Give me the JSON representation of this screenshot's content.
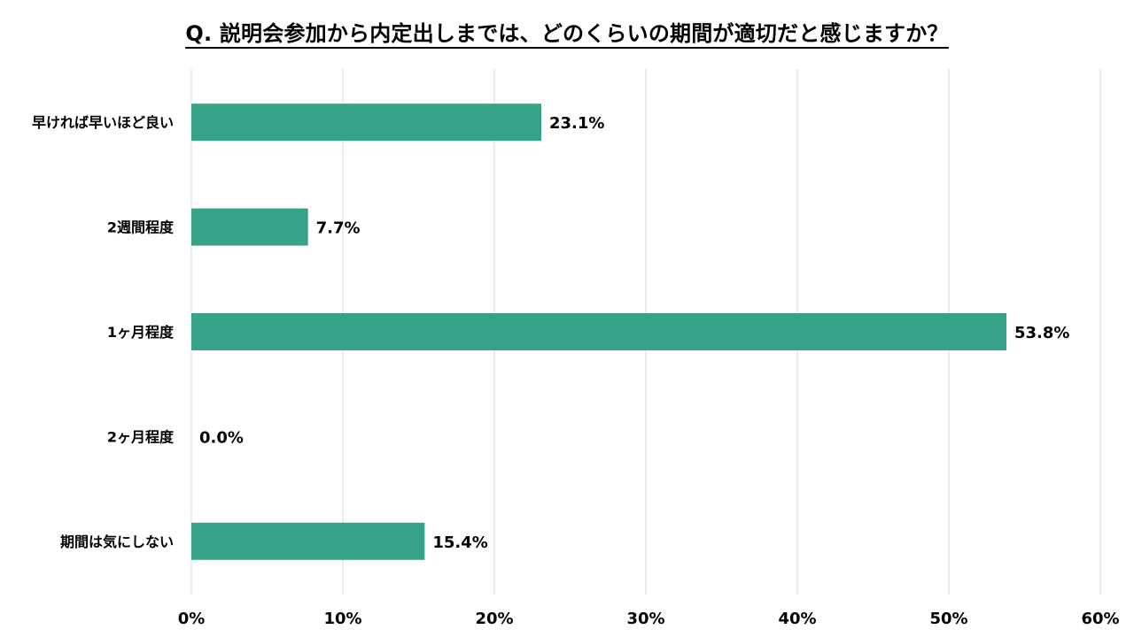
{
  "chart_data": {
    "type": "bar",
    "orientation": "horizontal",
    "title": "Q. 説明会参加から内定出しまでは、どのくらいの期間が適切だと感じますか？",
    "categories": [
      "早ければ早いほど良い",
      "2週間程度",
      "1ヶ月程度",
      "2ヶ月程度",
      "期間は気にしない"
    ],
    "values": [
      23.1,
      7.7,
      53.8,
      0.0,
      15.4
    ],
    "value_labels": [
      "23.1%",
      "7.7%",
      "53.8%",
      "0.0%",
      "15.4%"
    ],
    "x_ticks": [
      "0%",
      "10%",
      "20%",
      "30%",
      "40%",
      "50%",
      "60%"
    ],
    "xlim": [
      0,
      60
    ],
    "xlabel": "",
    "ylabel": "",
    "grid": "vertical",
    "legend": "none",
    "bar_color": "#36A287",
    "grid_color": "#D9D9D9"
  }
}
